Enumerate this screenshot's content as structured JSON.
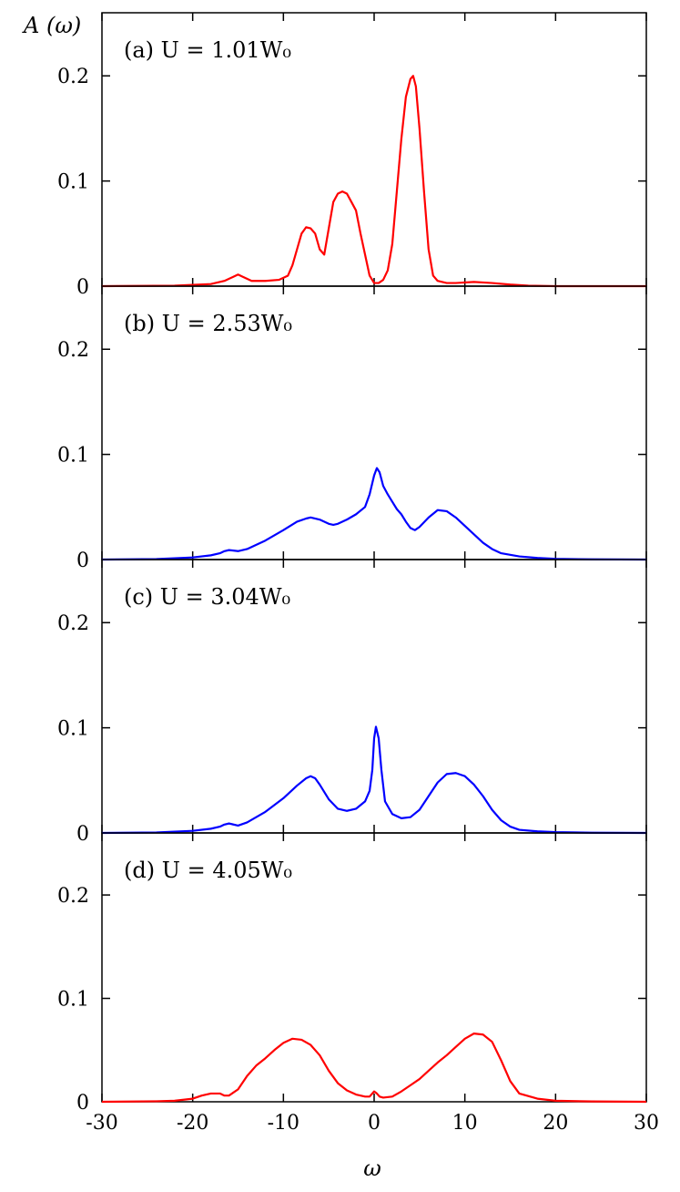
{
  "chart_data": {
    "type": "line",
    "xlabel": "ω",
    "ylabel": "A (ω)",
    "xlim": [
      -30,
      30
    ],
    "ylim": [
      0,
      0.26
    ],
    "x_ticks": [
      -30,
      -20,
      -10,
      0,
      10,
      20,
      30
    ],
    "x_tick_labels": [
      "-30",
      "-20",
      "-10",
      "0",
      "10",
      "20",
      "30"
    ],
    "y_ticks": [
      0,
      0.1,
      0.2
    ],
    "y_tick_labels": [
      "0",
      "0.1",
      "0.2"
    ],
    "grid": false,
    "panels": [
      {
        "label": "(a) U = 1.01W₀",
        "color": "#ff0000",
        "x": [
          -30,
          -22,
          -18,
          -16.5,
          -15.5,
          -15,
          -14.5,
          -13.5,
          -12,
          -10.5,
          -9.5,
          -9,
          -8.5,
          -8,
          -7.5,
          -7,
          -6.5,
          -6,
          -5.5,
          -5,
          -4.5,
          -4,
          -3.5,
          -3,
          -2.5,
          -2,
          -1.5,
          -1,
          -0.5,
          0,
          0.5,
          1,
          1.5,
          2,
          2.5,
          3,
          3.5,
          4,
          4.3,
          4.6,
          5,
          5.5,
          6,
          6.5,
          7,
          8,
          9,
          11,
          13,
          15,
          17,
          20,
          30
        ],
        "y": [
          0,
          0.0005,
          0.002,
          0.005,
          0.009,
          0.011,
          0.009,
          0.005,
          0.005,
          0.006,
          0.01,
          0.02,
          0.035,
          0.05,
          0.056,
          0.055,
          0.05,
          0.035,
          0.03,
          0.055,
          0.08,
          0.088,
          0.09,
          0.088,
          0.08,
          0.072,
          0.05,
          0.03,
          0.01,
          0.003,
          0.003,
          0.006,
          0.015,
          0.04,
          0.09,
          0.14,
          0.18,
          0.197,
          0.2,
          0.19,
          0.15,
          0.09,
          0.035,
          0.01,
          0.005,
          0.003,
          0.003,
          0.004,
          0.003,
          0.0015,
          0.0005,
          0,
          0
        ]
      },
      {
        "label": "(b) U = 2.53W₀",
        "color": "#0000ff",
        "x": [
          -30,
          -24,
          -20,
          -18,
          -17,
          -16.5,
          -16,
          -15,
          -14,
          -12,
          -10,
          -8.5,
          -7.5,
          -7,
          -6,
          -5,
          -4.5,
          -4,
          -3,
          -2,
          -1,
          -0.5,
          0,
          0.3,
          0.6,
          1,
          1.5,
          2,
          2.5,
          3,
          3.5,
          4,
          4.5,
          5,
          6,
          7,
          8,
          9,
          10,
          11,
          12,
          13,
          14,
          16,
          18,
          20,
          24,
          30
        ],
        "y": [
          0,
          0.0005,
          0.002,
          0.004,
          0.006,
          0.008,
          0.009,
          0.008,
          0.01,
          0.018,
          0.028,
          0.036,
          0.039,
          0.04,
          0.038,
          0.034,
          0.033,
          0.034,
          0.038,
          0.043,
          0.05,
          0.062,
          0.08,
          0.087,
          0.083,
          0.07,
          0.062,
          0.055,
          0.048,
          0.043,
          0.036,
          0.03,
          0.028,
          0.031,
          0.04,
          0.047,
          0.046,
          0.04,
          0.032,
          0.024,
          0.016,
          0.01,
          0.006,
          0.003,
          0.0015,
          0.0007,
          0.0002,
          0
        ]
      },
      {
        "label": "(c) U = 3.04W₀",
        "color": "#0000ff",
        "x": [
          -30,
          -24,
          -20,
          -18,
          -17,
          -16.5,
          -16,
          -15,
          -14,
          -12,
          -10,
          -8.5,
          -7.5,
          -7,
          -6.5,
          -6,
          -5,
          -4,
          -3,
          -2,
          -1,
          -0.5,
          -0.2,
          0,
          0.2,
          0.5,
          0.8,
          1.2,
          2,
          3,
          4,
          5,
          6,
          7,
          8,
          9,
          10,
          11,
          12,
          13,
          14,
          15,
          16,
          18,
          20,
          24,
          30
        ],
        "y": [
          0,
          0.0005,
          0.002,
          0.004,
          0.006,
          0.008,
          0.009,
          0.007,
          0.01,
          0.02,
          0.033,
          0.045,
          0.052,
          0.054,
          0.052,
          0.046,
          0.032,
          0.023,
          0.021,
          0.023,
          0.03,
          0.04,
          0.06,
          0.09,
          0.101,
          0.09,
          0.06,
          0.03,
          0.018,
          0.014,
          0.015,
          0.022,
          0.035,
          0.048,
          0.056,
          0.057,
          0.054,
          0.046,
          0.035,
          0.022,
          0.012,
          0.006,
          0.003,
          0.0015,
          0.0008,
          0.0002,
          0
        ]
      },
      {
        "label": "(d) U = 4.05W₀",
        "color": "#ff0000",
        "x": [
          -30,
          -24,
          -22,
          -20,
          -19,
          -18,
          -17,
          -16.5,
          -16,
          -15,
          -14,
          -13,
          -12,
          -11,
          -10,
          -9,
          -8,
          -7,
          -6,
          -5,
          -4,
          -3,
          -2,
          -1,
          -0.5,
          0,
          0.3,
          0.6,
          1,
          2,
          3,
          4,
          5,
          6,
          7,
          8,
          9,
          10,
          11,
          12,
          13,
          14,
          15,
          16,
          18,
          20,
          24,
          30
        ],
        "y": [
          0,
          0.0005,
          0.001,
          0.003,
          0.006,
          0.008,
          0.008,
          0.006,
          0.006,
          0.012,
          0.025,
          0.035,
          0.042,
          0.05,
          0.057,
          0.061,
          0.06,
          0.055,
          0.045,
          0.03,
          0.018,
          0.011,
          0.007,
          0.005,
          0.005,
          0.01,
          0.008,
          0.005,
          0.004,
          0.005,
          0.01,
          0.016,
          0.022,
          0.03,
          0.038,
          0.045,
          0.053,
          0.061,
          0.066,
          0.065,
          0.058,
          0.04,
          0.02,
          0.008,
          0.003,
          0.001,
          0.0003,
          0
        ]
      }
    ]
  }
}
